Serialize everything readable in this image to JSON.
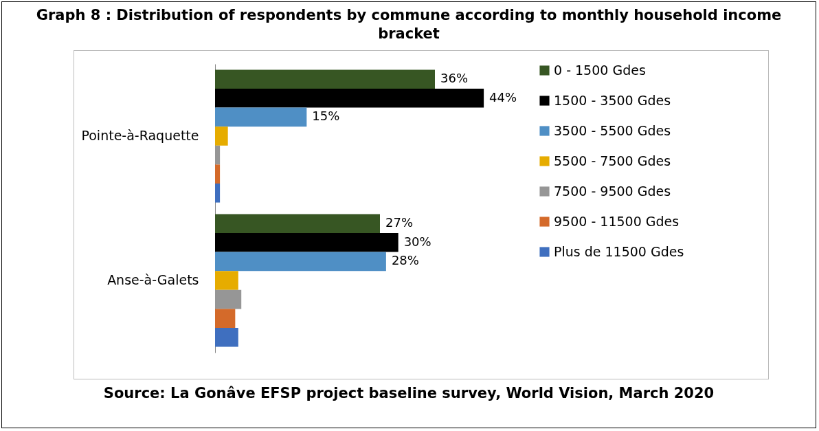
{
  "chart_data": {
    "type": "bar",
    "orientation": "horizontal",
    "title": "Graph 8 : Distribution of respondents by commune according to monthly household income bracket",
    "categories": [
      "Pointe-à-Raquette",
      "Anse-à-Galets"
    ],
    "series": [
      {
        "name": "0 - 1500 Gdes",
        "color": "#375623",
        "values": [
          36,
          27
        ],
        "value_labels": [
          "36%",
          "27%"
        ]
      },
      {
        "name": "1500 - 3500 Gdes",
        "color": "#000000",
        "values": [
          44,
          30
        ],
        "value_labels": [
          "44%",
          "30%"
        ]
      },
      {
        "name": "3500 - 5500 Gdes",
        "color": "#4f8fc5",
        "values": [
          15,
          28
        ],
        "value_labels": [
          "15%",
          "28%"
        ]
      },
      {
        "name": "5500 - 7500 Gdes",
        "color": "#e6ac00",
        "values": [
          2.1,
          3.8
        ]
      },
      {
        "name": "7500 - 9500 Gdes",
        "color": "#969696",
        "values": [
          0.8,
          4.3
        ]
      },
      {
        "name": "9500 - 11500 Gdes",
        "color": "#d46a2a",
        "values": [
          0.8,
          3.3
        ]
      },
      {
        "name": "Plus de 11500 Gdes",
        "color": "#3f6fbf",
        "values": [
          0.8,
          3.8
        ]
      }
    ],
    "legend": "right",
    "annotations": [
      "Source: La Gonâve EFSP project baseline survey, World Vision, March 2020"
    ]
  }
}
